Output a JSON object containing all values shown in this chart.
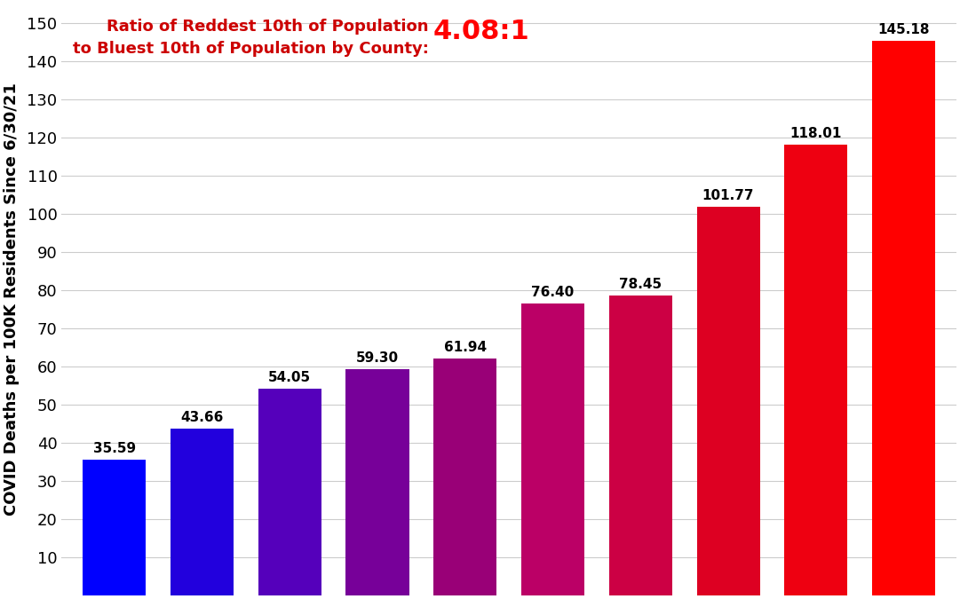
{
  "values": [
    35.59,
    43.66,
    54.05,
    59.3,
    61.94,
    76.4,
    78.45,
    101.77,
    118.01,
    145.18
  ],
  "bar_colors": [
    "#0000ff",
    "#2200dd",
    "#5500bb",
    "#770099",
    "#990077",
    "#bb0066",
    "#cc0044",
    "#dd0022",
    "#ee0011",
    "#ff0000"
  ],
  "ylabel": "COVID Deaths per 100K Residents Since 6/30/21",
  "ylim_display": 150,
  "ylim_actual": 155,
  "yticks": [
    10,
    20,
    30,
    40,
    50,
    60,
    70,
    80,
    90,
    100,
    110,
    120,
    130,
    140,
    150
  ],
  "annotation_text_main": "Ratio of Reddest 10th of Population\nto Bluest 10th of Population by County:",
  "annotation_ratio": "4.08:1",
  "annotation_color_main": "#cc0000",
  "annotation_color_ratio": "#ff0000",
  "background_color": "#ffffff",
  "grid_color": "#cccccc",
  "bar_width": 0.72,
  "label_fontsize": 11,
  "ylabel_fontsize": 13,
  "ytick_fontsize": 13,
  "annotation_fontsize_main": 13,
  "annotation_fontsize_ratio": 22,
  "figwidth": 10.81,
  "figheight": 6.75,
  "dpi": 100
}
